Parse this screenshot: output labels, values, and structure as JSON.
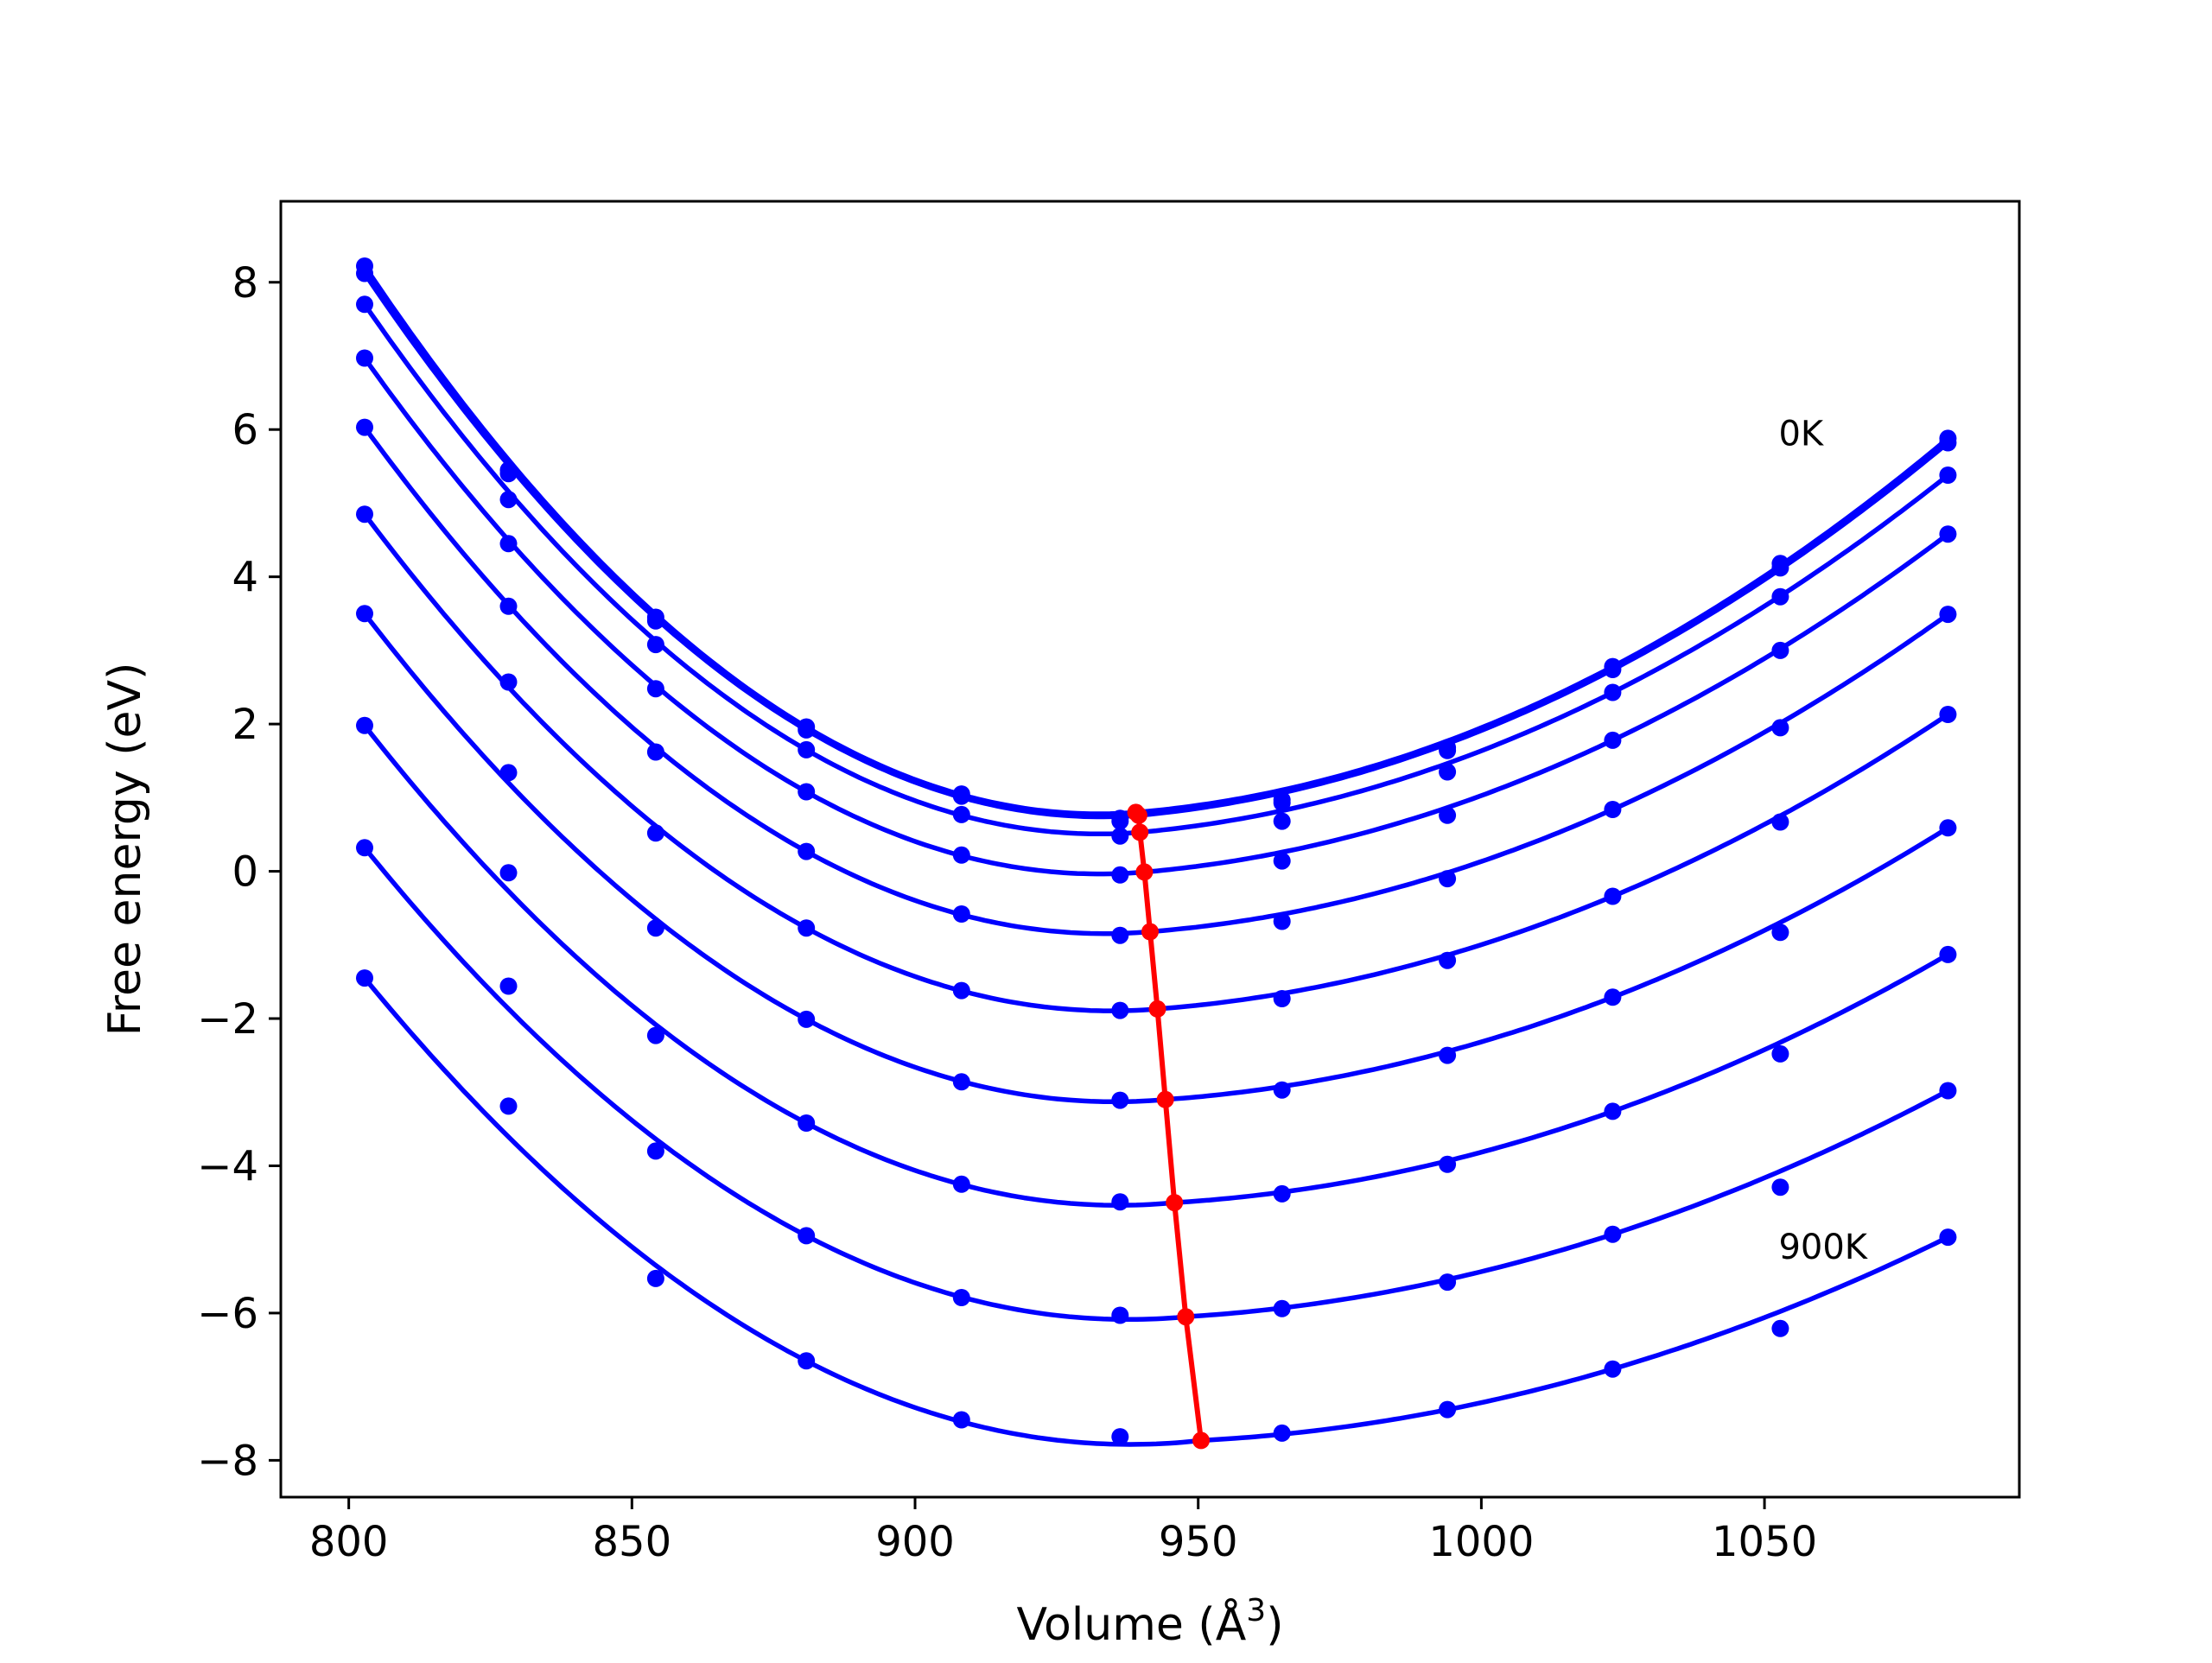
{
  "chart_data": {
    "type": "line",
    "xlabel": "Volume (Å",
    "xlabel_sup": "3",
    "xlabel_end": ")",
    "ylabel": "Free energy (eV)",
    "xlim": [
      788,
      1095
    ],
    "ylim": [
      -8.5,
      9.1
    ],
    "xticks": [
      800,
      850,
      900,
      950,
      1000,
      1050
    ],
    "xtick_labels": [
      "800",
      "850",
      "900",
      "950",
      "1000",
      "1050"
    ],
    "yticks": [
      -8,
      -6,
      -4,
      -2,
      0,
      2,
      4,
      6,
      8
    ],
    "ytick_labels": [
      "−8",
      "−6",
      "−4",
      "−2",
      "0",
      "2",
      "4",
      "6",
      "8"
    ],
    "grid": false,
    "x": [
      802.8,
      828.2,
      854.2,
      880.8,
      908.2,
      936.2,
      964.8,
      994.0,
      1023.2,
      1052.8,
      1082.4
    ],
    "series": [
      {
        "y": [
          8.22,
          5.45,
          3.45,
          1.96,
          1.05,
          0.72,
          0.97,
          1.68,
          2.78,
          4.18,
          5.88
        ],
        "min": [
          939.0,
          0.8
        ],
        "color": "#0000ff"
      },
      {
        "y": [
          8.12,
          5.4,
          3.4,
          1.92,
          1.02,
          0.68,
          0.93,
          1.64,
          2.74,
          4.12,
          5.82
        ],
        "min": [
          939.5,
          0.76
        ],
        "color": "#0000ff"
      },
      {
        "y": [
          7.7,
          5.05,
          3.08,
          1.65,
          0.77,
          0.48,
          0.68,
          1.35,
          2.43,
          3.73,
          5.38
        ],
        "min": [
          939.7,
          0.53
        ],
        "color": "#0000ff"
      },
      {
        "y": [
          6.97,
          4.45,
          2.48,
          1.08,
          0.22,
          -0.05,
          0.14,
          0.76,
          1.78,
          3.0,
          4.58
        ],
        "min": [
          940.5,
          -0.01
        ],
        "color": "#0000ff"
      },
      {
        "y": [
          6.03,
          3.6,
          1.62,
          0.27,
          -0.58,
          -0.87,
          -0.68,
          -0.1,
          0.84,
          1.95,
          3.49
        ],
        "min": [
          941.5,
          -0.82
        ],
        "color": "#0000ff"
      },
      {
        "y": [
          4.85,
          2.57,
          0.52,
          -0.77,
          -1.62,
          -1.89,
          -1.73,
          -1.21,
          -0.34,
          0.67,
          2.13
        ],
        "min": [
          942.8,
          -1.87
        ],
        "color": "#0000ff"
      },
      {
        "y": [
          3.5,
          1.34,
          -0.77,
          -2.01,
          -2.86,
          -3.11,
          -2.97,
          -2.5,
          -1.71,
          -0.83,
          0.59
        ],
        "min": [
          944.2,
          -3.1
        ],
        "color": "#0000ff"
      },
      {
        "y": [
          1.98,
          -0.02,
          -2.23,
          -3.42,
          -4.25,
          -4.49,
          -4.38,
          -3.98,
          -3.26,
          -2.48,
          -1.13
        ],
        "min": [
          945.8,
          -4.5
        ],
        "color": "#0000ff"
      },
      {
        "y": [
          0.32,
          -1.56,
          -3.8,
          -4.95,
          -5.79,
          -6.03,
          -5.94,
          -5.58,
          -4.93,
          -4.29,
          -2.98
        ],
        "min": [
          947.8,
          -6.05
        ],
        "color": "#0000ff"
      },
      {
        "y": [
          -1.45,
          -3.19,
          -5.53,
          -6.65,
          -7.45,
          -7.68,
          -7.63,
          -7.31,
          -6.76,
          -6.21,
          -4.97
        ],
        "min": [
          950.5,
          -7.73
        ],
        "color": "#0000ff"
      }
    ],
    "minima_line": {
      "color": "#ff0000",
      "x": [
        939.0,
        939.5,
        939.7,
        940.5,
        941.5,
        942.8,
        944.2,
        945.8,
        947.8,
        950.5
      ],
      "y": [
        0.8,
        0.76,
        0.53,
        -0.01,
        -0.82,
        -1.87,
        -3.1,
        -4.5,
        -6.05,
        -7.73
      ]
    },
    "annotations": [
      {
        "text": "0K",
        "x": 1052.5,
        "y": 5.95
      },
      {
        "text": "900K",
        "x": 1052.5,
        "y": -5.1
      }
    ]
  }
}
